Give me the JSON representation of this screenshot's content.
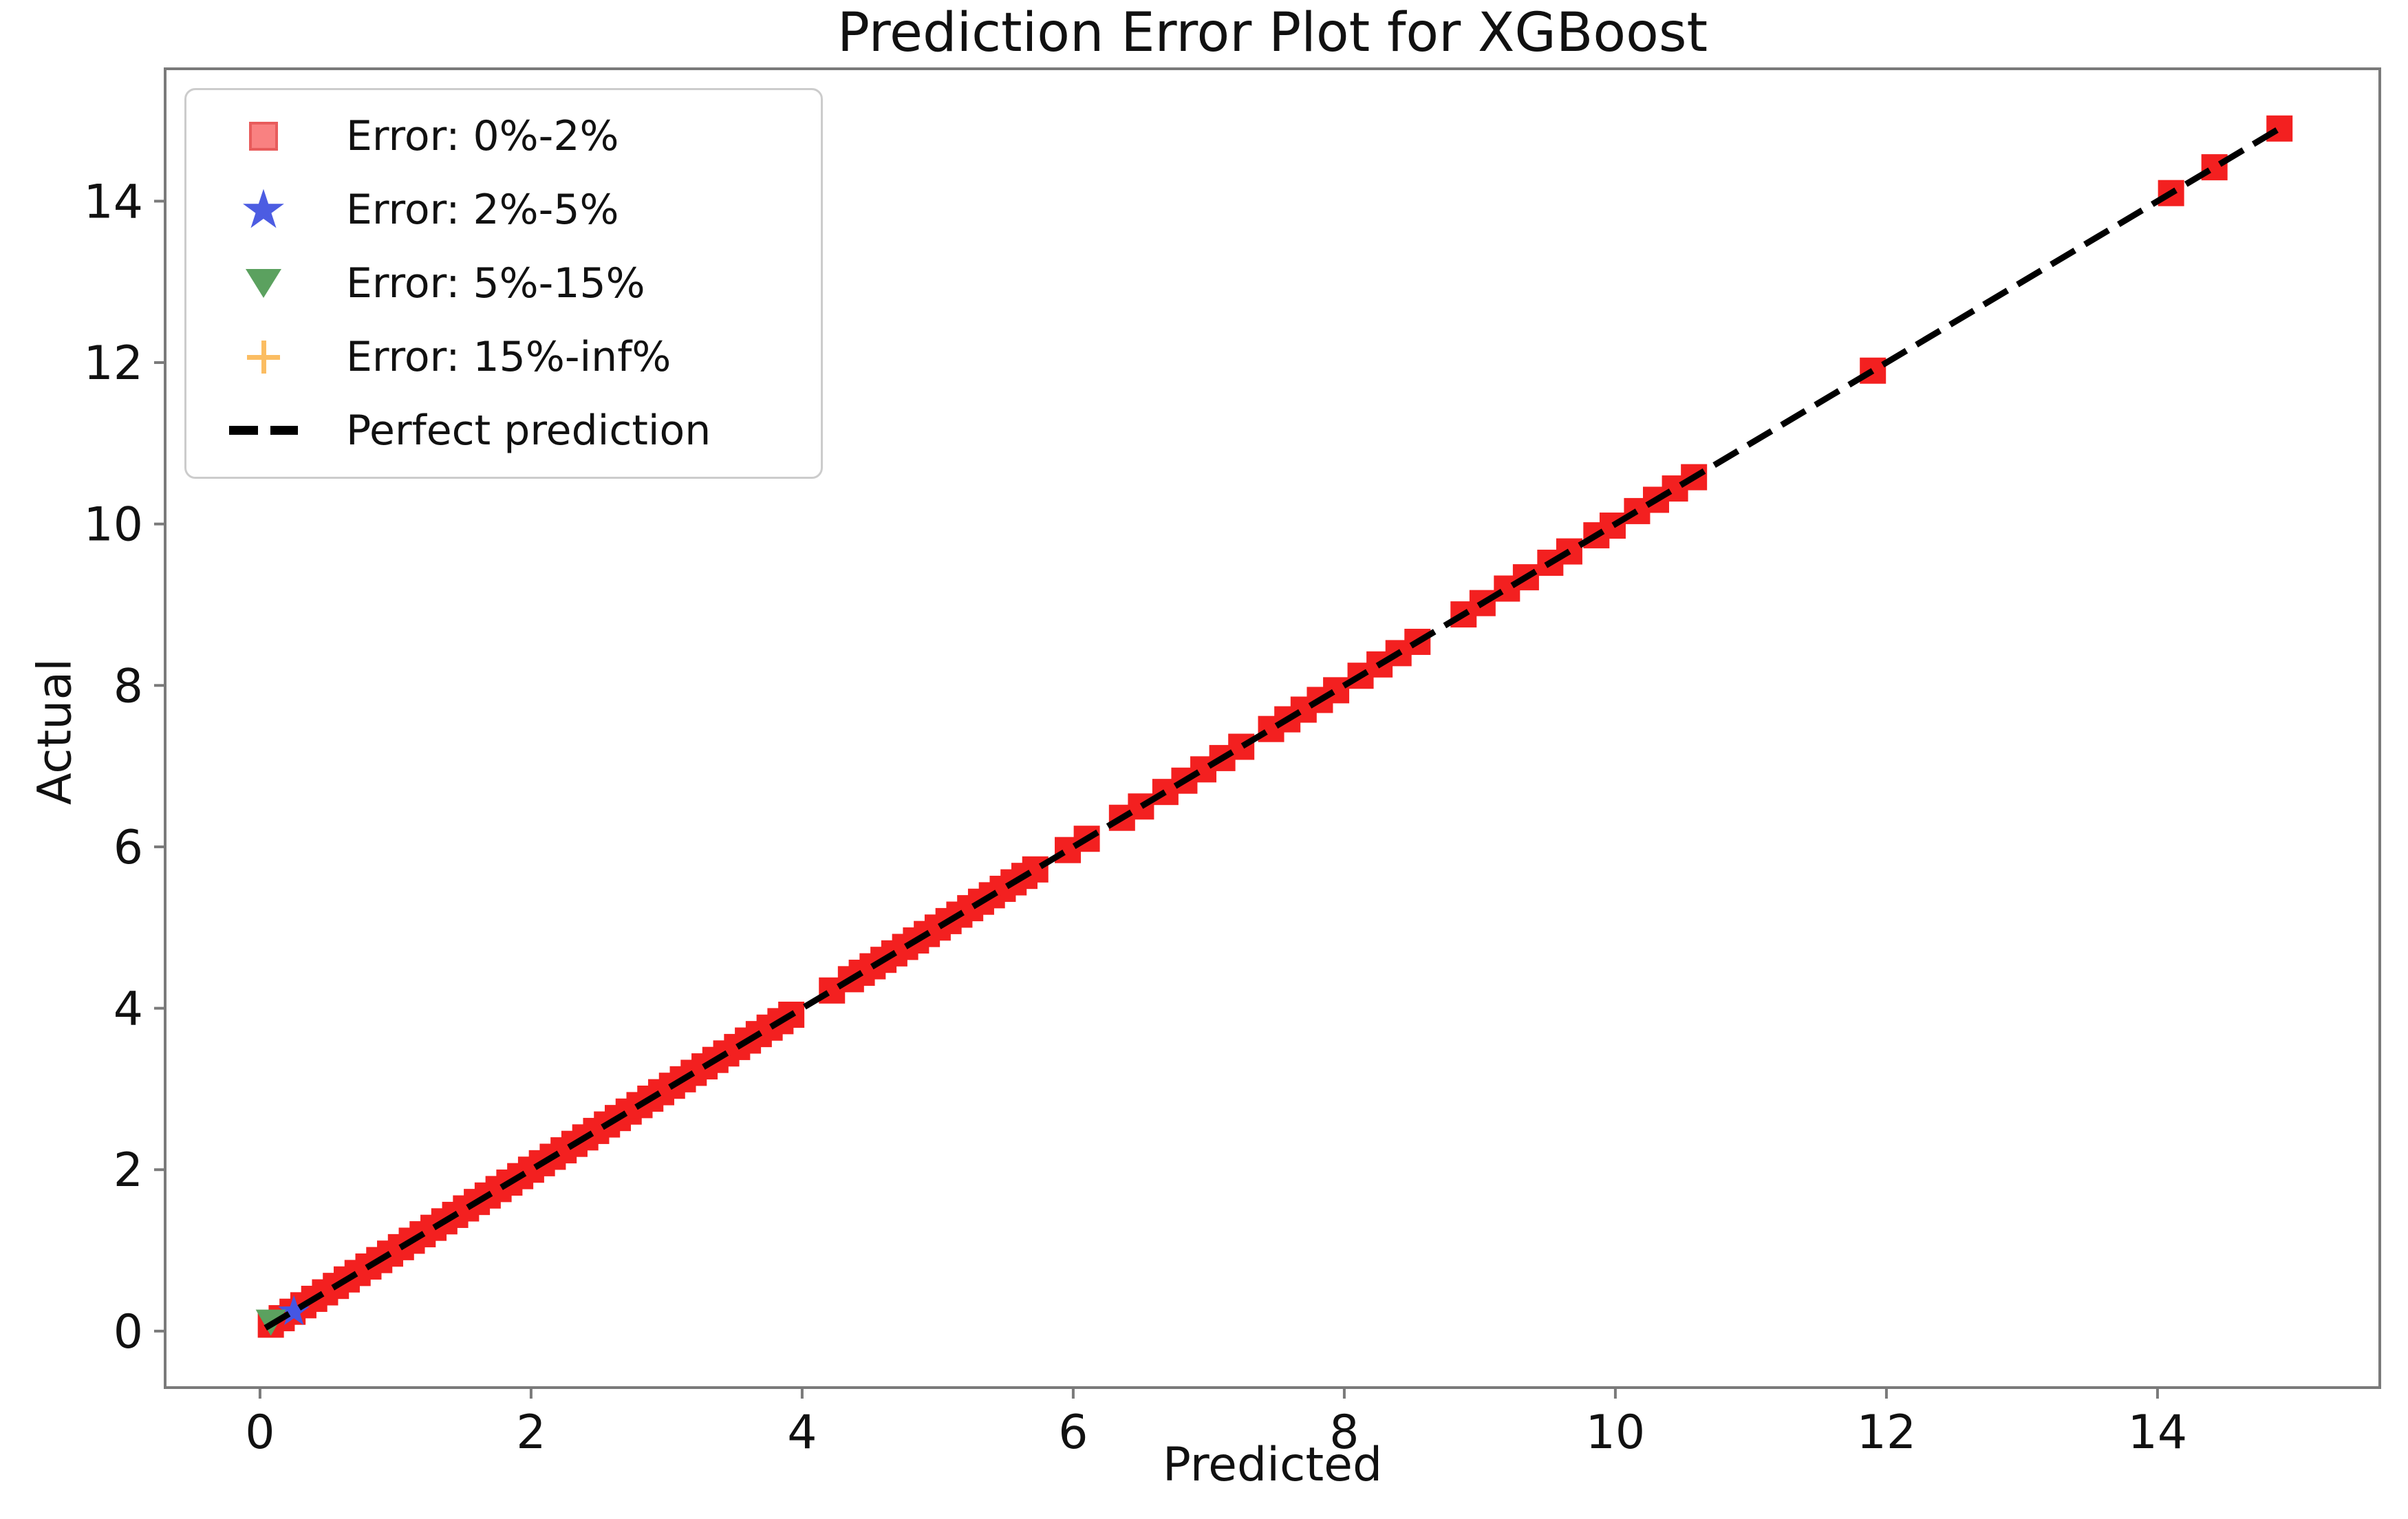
{
  "title": "Prediction Error Plot for XGBoost",
  "xlabel": "Predicted",
  "ylabel": "Actual",
  "legend": {
    "position": "upper left",
    "items": [
      {
        "label": "Error: 0%-2%",
        "marker": "square",
        "color": "#f98181",
        "edge_color": "#e85c5c"
      },
      {
        "label": "Error: 2%-5%",
        "marker": "star",
        "color": "#4c5ce2"
      },
      {
        "label": "Error: 5%-15%",
        "marker": "triangle-down",
        "color": "#5ba15f"
      },
      {
        "label": "Error: 15%-inf%",
        "marker": "plus",
        "color": "#fbbd62"
      },
      {
        "label": "Perfect prediction",
        "marker": "dashed-line",
        "color": "#000000"
      }
    ]
  },
  "chart_data": {
    "type": "scatter",
    "title": "Prediction Error Plot for XGBoost",
    "xlabel": "Predicted",
    "ylabel": "Actual",
    "xlim": [
      -0.7,
      15.64
    ],
    "ylim": [
      -0.7,
      15.64
    ],
    "xticks": [
      0,
      2,
      4,
      6,
      8,
      10,
      12,
      14
    ],
    "yticks": [
      0,
      2,
      4,
      6,
      8,
      10,
      12,
      14
    ],
    "grid": false,
    "legend_position": "upper left",
    "frame_color": "#7a7a7a",
    "tick_label_color": "#111111",
    "series": [
      {
        "name": "Error: 0%-2%",
        "marker": "square",
        "plot_color": "#f32020",
        "legend_color": "#f98181",
        "points": [
          [
            0.08,
            0.08
          ],
          [
            0.16,
            0.16
          ],
          [
            0.24,
            0.24
          ],
          [
            0.32,
            0.32
          ],
          [
            0.4,
            0.4
          ],
          [
            0.48,
            0.48
          ],
          [
            0.56,
            0.56
          ],
          [
            0.64,
            0.64
          ],
          [
            0.72,
            0.72
          ],
          [
            0.8,
            0.8
          ],
          [
            0.88,
            0.88
          ],
          [
            0.96,
            0.96
          ],
          [
            1.04,
            1.04
          ],
          [
            1.12,
            1.12
          ],
          [
            1.2,
            1.2
          ],
          [
            1.28,
            1.28
          ],
          [
            1.36,
            1.36
          ],
          [
            1.44,
            1.44
          ],
          [
            1.52,
            1.52
          ],
          [
            1.6,
            1.6
          ],
          [
            1.68,
            1.68
          ],
          [
            1.76,
            1.76
          ],
          [
            1.84,
            1.84
          ],
          [
            1.92,
            1.92
          ],
          [
            2.0,
            2.0
          ],
          [
            2.08,
            2.08
          ],
          [
            2.16,
            2.16
          ],
          [
            2.24,
            2.24
          ],
          [
            2.32,
            2.32
          ],
          [
            2.4,
            2.4
          ],
          [
            2.48,
            2.48
          ],
          [
            2.56,
            2.56
          ],
          [
            2.64,
            2.64
          ],
          [
            2.72,
            2.72
          ],
          [
            2.8,
            2.8
          ],
          [
            2.88,
            2.88
          ],
          [
            2.96,
            2.96
          ],
          [
            3.04,
            3.04
          ],
          [
            3.12,
            3.12
          ],
          [
            3.2,
            3.2
          ],
          [
            3.28,
            3.28
          ],
          [
            3.36,
            3.36
          ],
          [
            3.44,
            3.44
          ],
          [
            3.52,
            3.52
          ],
          [
            3.6,
            3.6
          ],
          [
            3.68,
            3.68
          ],
          [
            3.76,
            3.76
          ],
          [
            3.84,
            3.84
          ],
          [
            3.92,
            3.92
          ],
          [
            4.22,
            4.22
          ],
          [
            4.36,
            4.36
          ],
          [
            4.44,
            4.44
          ],
          [
            4.52,
            4.52
          ],
          [
            4.6,
            4.6
          ],
          [
            4.68,
            4.68
          ],
          [
            4.76,
            4.76
          ],
          [
            4.84,
            4.84
          ],
          [
            4.92,
            4.92
          ],
          [
            5.0,
            5.0
          ],
          [
            5.08,
            5.08
          ],
          [
            5.16,
            5.16
          ],
          [
            5.24,
            5.24
          ],
          [
            5.32,
            5.32
          ],
          [
            5.4,
            5.4
          ],
          [
            5.48,
            5.48
          ],
          [
            5.56,
            5.56
          ],
          [
            5.64,
            5.64
          ],
          [
            5.72,
            5.72
          ],
          [
            5.96,
            5.96
          ],
          [
            6.1,
            6.1
          ],
          [
            6.36,
            6.36
          ],
          [
            6.5,
            6.5
          ],
          [
            6.68,
            6.68
          ],
          [
            6.82,
            6.82
          ],
          [
            6.96,
            6.96
          ],
          [
            7.1,
            7.1
          ],
          [
            7.24,
            7.24
          ],
          [
            7.46,
            7.46
          ],
          [
            7.58,
            7.58
          ],
          [
            7.7,
            7.7
          ],
          [
            7.82,
            7.82
          ],
          [
            7.94,
            7.94
          ],
          [
            8.12,
            8.12
          ],
          [
            8.26,
            8.26
          ],
          [
            8.4,
            8.4
          ],
          [
            8.54,
            8.54
          ],
          [
            8.88,
            8.88
          ],
          [
            9.02,
            9.02
          ],
          [
            9.2,
            9.2
          ],
          [
            9.34,
            9.34
          ],
          [
            9.52,
            9.52
          ],
          [
            9.66,
            9.66
          ],
          [
            9.86,
            9.86
          ],
          [
            9.98,
            9.98
          ],
          [
            10.16,
            10.16
          ],
          [
            10.3,
            10.3
          ],
          [
            10.44,
            10.44
          ],
          [
            10.58,
            10.58
          ],
          [
            11.9,
            11.9
          ],
          [
            14.1,
            14.1
          ],
          [
            14.42,
            14.42
          ],
          [
            14.9,
            14.9
          ]
        ]
      },
      {
        "name": "Error: 2%-5%",
        "marker": "star",
        "plot_color": "#4556e3",
        "legend_color": "#4c5ce2",
        "points": [
          [
            0.25,
            0.24
          ]
        ]
      },
      {
        "name": "Error: 5%-15%",
        "marker": "triangle-down",
        "plot_color": "#5ba15f",
        "legend_color": "#5ba15f",
        "points": [
          [
            0.08,
            0.13
          ]
        ]
      },
      {
        "name": "Error: 15%-inf%",
        "marker": "plus",
        "plot_color": "#fbbd62",
        "legend_color": "#fbbd62",
        "points": []
      },
      {
        "name": "Perfect prediction",
        "marker": "dashed-line",
        "plot_color": "#000000",
        "line_from": [
          0.04,
          0.04
        ],
        "line_to": [
          14.9,
          14.9
        ]
      }
    ]
  }
}
